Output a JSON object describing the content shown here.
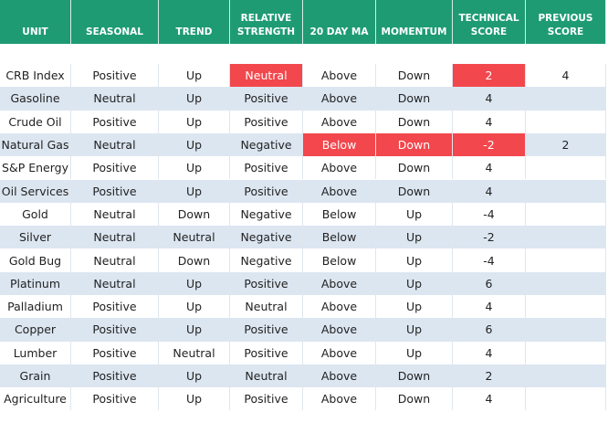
{
  "table": {
    "columns": [
      "UNIT",
      "SEASONAL",
      "TREND",
      "RELATIVE STRENGTH",
      "20 DAY MA",
      "MOMENTUM",
      "TECHNICAL SCORE",
      "PREVIOUS SCORE"
    ],
    "rows": [
      [
        "CRB Index",
        "Positive",
        "Up",
        "Neutral",
        "Above",
        "Down",
        2,
        4
      ],
      [
        "Gasoline",
        "Neutral",
        "Up",
        "Positive",
        "Above",
        "Down",
        4,
        null
      ],
      [
        "Crude Oil",
        "Positive",
        "Up",
        "Positive",
        "Above",
        "Down",
        4,
        null
      ],
      [
        "Natural Gas",
        "Neutral",
        "Up",
        "Negative",
        "Below",
        "Down",
        -2,
        2
      ],
      [
        "S&P Energy",
        "Positive",
        "Up",
        "Positive",
        "Above",
        "Down",
        4,
        null
      ],
      [
        "Oil Services",
        "Positive",
        "Up",
        "Positive",
        "Above",
        "Down",
        4,
        null
      ],
      [
        "Gold",
        "Neutral",
        "Down",
        "Negative",
        "Below",
        "Up",
        -4,
        null
      ],
      [
        "Silver",
        "Neutral",
        "Neutral",
        "Negative",
        "Below",
        "Up",
        -2,
        null
      ],
      [
        "Gold Bug",
        "Neutral",
        "Down",
        "Negative",
        "Below",
        "Up",
        -4,
        null
      ],
      [
        "Platinum",
        "Neutral",
        "Up",
        "Positive",
        "Above",
        "Up",
        6,
        null
      ],
      [
        "Palladium",
        "Positive",
        "Up",
        "Neutral",
        "Above",
        "Up",
        4,
        null
      ],
      [
        "Copper",
        "Positive",
        "Up",
        "Positive",
        "Above",
        "Up",
        6,
        null
      ],
      [
        "Lumber",
        "Positive",
        "Neutral",
        "Positive",
        "Above",
        "Up",
        4,
        null
      ],
      [
        "Grain",
        "Positive",
        "Up",
        "Neutral",
        "Above",
        "Down",
        2,
        null
      ],
      [
        "Agriculture",
        "Positive",
        "Up",
        "Positive",
        "Above",
        "Down",
        4,
        null
      ]
    ]
  }
}
